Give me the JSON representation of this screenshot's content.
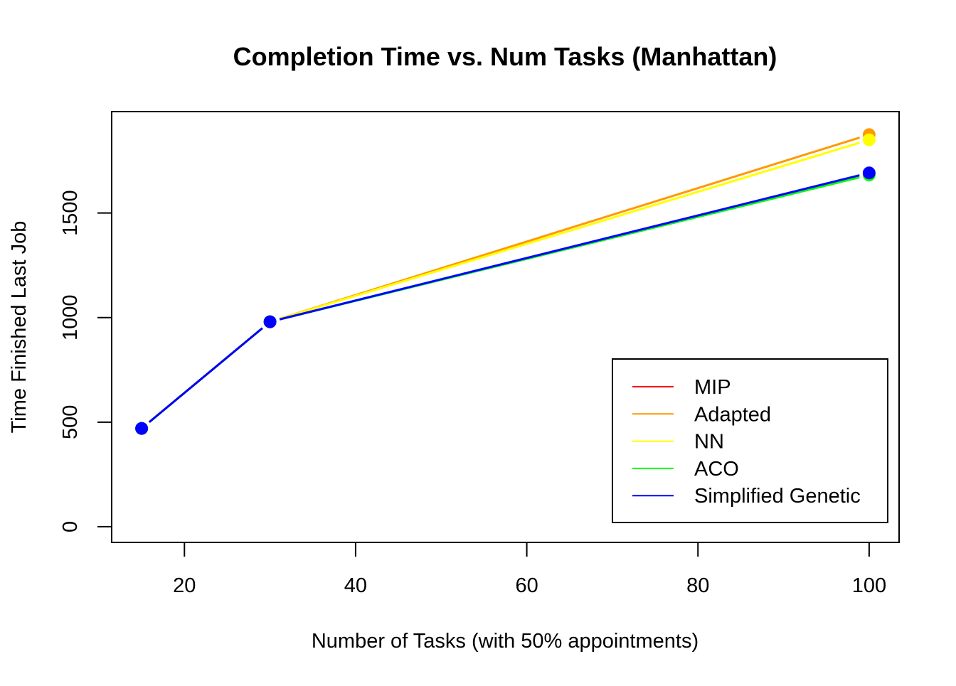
{
  "chart_data": {
    "type": "line",
    "title": "Completion Time vs. Num Tasks (Manhattan)",
    "xlabel": "Number of Tasks (with 50% appointments)",
    "ylabel": "Time Finished Last Job",
    "x_ticks": [
      20,
      40,
      60,
      80,
      100
    ],
    "y_ticks": [
      0,
      500,
      1000,
      1500
    ],
    "xlim": [
      11.5,
      103.5
    ],
    "ylim": [
      -75,
      1985
    ],
    "grid": false,
    "legend_position": "bottom-right",
    "series": [
      {
        "name": "MIP",
        "color": "#FF0000",
        "x": [
          15,
          30
        ],
        "y": [
          470,
          980
        ]
      },
      {
        "name": "Adapted",
        "color": "#FF9900",
        "x": [
          15,
          30,
          100
        ],
        "y": [
          470,
          980,
          1875
        ]
      },
      {
        "name": "NN",
        "color": "#FFFF00",
        "x": [
          15,
          30,
          100
        ],
        "y": [
          470,
          980,
          1850
        ]
      },
      {
        "name": "ACO",
        "color": "#00FF00",
        "x": [
          15,
          30,
          100
        ],
        "y": [
          470,
          980,
          1682
        ]
      },
      {
        "name": "Simplified Genetic",
        "color": "#0000FF",
        "x": [
          15,
          30,
          100
        ],
        "y": [
          470,
          980,
          1692
        ]
      }
    ]
  }
}
